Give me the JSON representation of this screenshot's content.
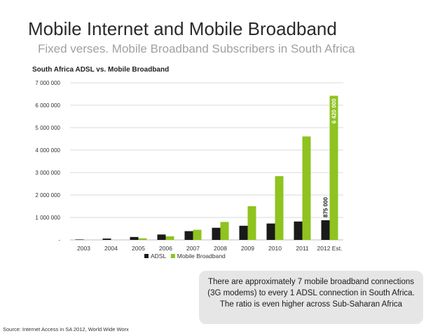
{
  "slide": {
    "title": "Mobile Internet and Mobile Broadband",
    "subtitle": "Fixed verses. Mobile Broadband Subscribers in South Africa",
    "callout": "There are approximately 7 mobile broadband connections (3G modems) to every 1 ADSL connection in South Africa. The ratio is even higher across Sub-Saharan Africa",
    "source": "Source: Internet Access in SA 2012, World Wide Worx"
  },
  "colors": {
    "adsl": "#1a1a1a",
    "mobile": "#8fc31f",
    "grid": "#d9d9d9"
  },
  "chart_data": {
    "type": "bar",
    "title": "South Africa ADSL vs. Mobile Broadband",
    "categories": [
      "2003",
      "2004",
      "2005",
      "2006",
      "2007",
      "2008",
      "2009",
      "2010",
      "2011",
      "2012 Est."
    ],
    "series": [
      {
        "name": "ADSL",
        "values": [
          20000,
          60000,
          130000,
          240000,
          390000,
          540000,
          630000,
          730000,
          820000,
          875000
        ]
      },
      {
        "name": "Mobile Broadband",
        "values": [
          0,
          0,
          70000,
          160000,
          450000,
          800000,
          1500000,
          2840000,
          4610000,
          6420000
        ]
      }
    ],
    "data_labels": [
      {
        "series": "ADSL",
        "category": "2012 Est.",
        "text": "875 000"
      },
      {
        "series": "Mobile Broadband",
        "category": "2012 Est.",
        "text": "6 420 000"
      }
    ],
    "ylim": [
      0,
      7000000
    ],
    "yticks": [
      0,
      1000000,
      2000000,
      3000000,
      4000000,
      5000000,
      6000000,
      7000000
    ],
    "ytick_labels": [
      "-",
      "1 000 000",
      "2 000 000",
      "3 000 000",
      "4 000 000",
      "5 000 000",
      "6 000 000",
      "7 000 000"
    ],
    "xlabel": "",
    "ylabel": "",
    "grid": true,
    "legend": "bottom"
  }
}
